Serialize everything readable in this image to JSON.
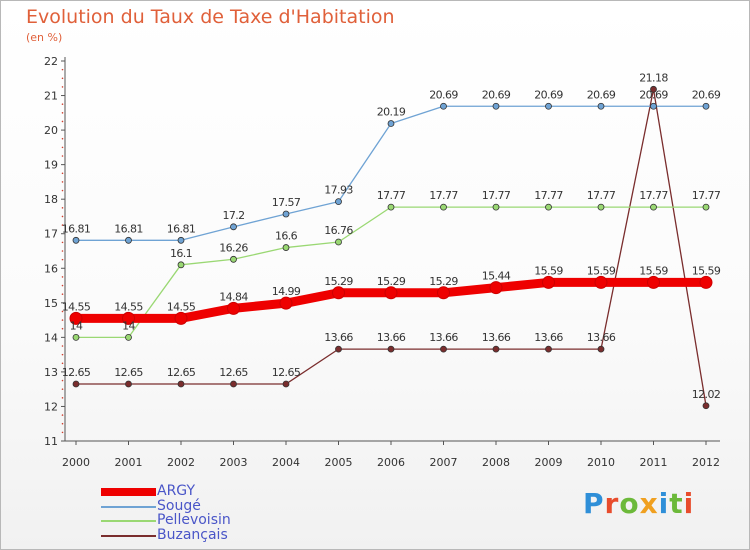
{
  "title": "Evolution du Taux de Taxe d'Habitation",
  "subtitle": "(en %)",
  "brand": {
    "text": "Proxiti",
    "colors": [
      "#2f8fd8",
      "#e84c2c",
      "#6cb93a",
      "#f0a020",
      "#2f8fd8",
      "#6cb93a",
      "#e84c2c"
    ]
  },
  "chart_data": {
    "type": "line",
    "title": "Evolution du Taux de Taxe d'Habitation",
    "subtitle": "(en %)",
    "x": [
      "2000",
      "2001",
      "2002",
      "2003",
      "2004",
      "2005",
      "2006",
      "2007",
      "2008",
      "2009",
      "2010",
      "2011",
      "2012"
    ],
    "ylim": [
      11,
      22
    ],
    "yticks": [
      11,
      12,
      13,
      14,
      15,
      16,
      17,
      18,
      19,
      20,
      21,
      22
    ],
    "grid": false,
    "legend": "bottom-left",
    "series": [
      {
        "name": "ARGY",
        "color": "#ee0000",
        "width": 9,
        "values": [
          14.55,
          14.55,
          14.55,
          14.84,
          14.99,
          15.29,
          15.29,
          15.29,
          15.44,
          15.59,
          15.59,
          15.59,
          15.59
        ],
        "labels": [
          "14.55",
          "14.55",
          "14.55",
          "14.84",
          "14.99",
          "15.29",
          "15.29",
          "15.29",
          "15.44",
          "15.59",
          "15.59",
          "15.59",
          "15.59"
        ]
      },
      {
        "name": "Sougé",
        "color": "#6fa3d4",
        "width": 1.3,
        "values": [
          16.81,
          16.81,
          16.81,
          17.2,
          17.57,
          17.93,
          20.19,
          20.69,
          20.69,
          20.69,
          20.69,
          20.69,
          20.69
        ],
        "labels": [
          "16.81",
          "16.81",
          "16.81",
          "17.2",
          "17.57",
          "17.93",
          "20.19",
          "20.69",
          "20.69",
          "20.69",
          "20.69",
          "20.69",
          "20.69"
        ]
      },
      {
        "name": "Pellevoisin",
        "color": "#9ad873",
        "width": 1.3,
        "values": [
          14,
          14,
          16.1,
          16.26,
          16.6,
          16.76,
          17.77,
          17.77,
          17.77,
          17.77,
          17.77,
          17.77,
          17.77
        ],
        "labels": [
          "14",
          "14",
          "16.1",
          "16.26",
          "16.6",
          "16.76",
          "17.77",
          "17.77",
          "17.77",
          "17.77",
          "17.77",
          "17.77",
          "17.77"
        ]
      },
      {
        "name": "Buzançais",
        "color": "#7a2d2d",
        "width": 1.3,
        "values": [
          12.65,
          12.65,
          12.65,
          12.65,
          12.65,
          13.66,
          13.66,
          13.66,
          13.66,
          13.66,
          13.66,
          21.18,
          12.02
        ],
        "labels": [
          "12.65",
          "12.65",
          "12.65",
          "12.65",
          "12.65",
          "13.66",
          "13.66",
          "13.66",
          "13.66",
          "13.66",
          "13.66",
          "21.18",
          "12.02"
        ]
      }
    ]
  }
}
